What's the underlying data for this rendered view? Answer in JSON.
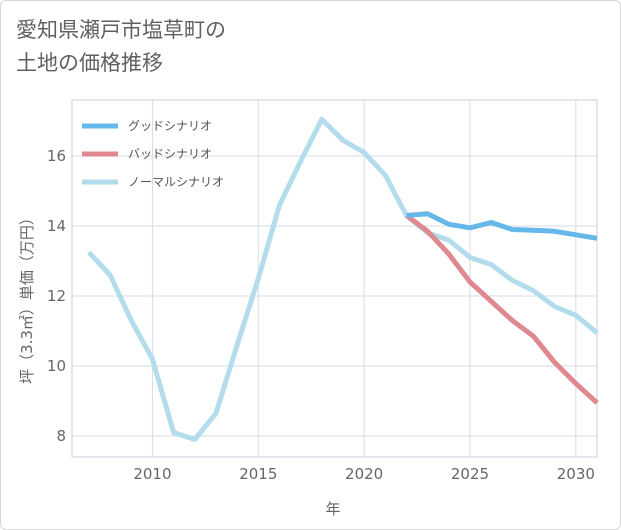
{
  "header": {
    "title_line1": "愛知県瀬戸市塩草町の",
    "title_line2": "土地の価格推移"
  },
  "chart_data": {
    "type": "line",
    "xlabel": "年",
    "ylabel": "坪（3.3㎡）単価（万円）",
    "xlim": [
      2006.2,
      2031
    ],
    "ylim": [
      7.4,
      17.6
    ],
    "xticks": [
      2010,
      2015,
      2020,
      2025,
      2030
    ],
    "yticks": [
      8,
      10,
      12,
      14,
      16
    ],
    "grid": true,
    "legend_position": "top-left",
    "series": [
      {
        "name": "グッドシナリオ",
        "color": "#66b8ea",
        "x": [
          2022,
          2023,
          2024,
          2025,
          2026,
          2027,
          2028,
          2029,
          2030,
          2031
        ],
        "y": [
          14.3,
          14.35,
          14.05,
          13.95,
          14.1,
          13.9,
          13.88,
          13.85,
          13.75,
          13.65
        ]
      },
      {
        "name": "バッドシナリオ",
        "color": "#e0888f",
        "x": [
          2022,
          2023,
          2024,
          2025,
          2026,
          2027,
          2028,
          2029,
          2030,
          2031
        ],
        "y": [
          14.3,
          13.85,
          13.2,
          12.4,
          11.85,
          11.3,
          10.85,
          10.1,
          9.5,
          8.95
        ]
      },
      {
        "name": "ノーマルシナリオ",
        "color": "#b3dced",
        "x": [
          2007,
          2008,
          2009,
          2010,
          2011,
          2012,
          2013,
          2014,
          2015,
          2016,
          2017,
          2018,
          2019,
          2020,
          2021,
          2022,
          2023,
          2024,
          2025,
          2026,
          2027,
          2028,
          2029,
          2030,
          2031
        ],
        "y": [
          13.25,
          12.6,
          11.3,
          10.2,
          8.1,
          7.9,
          8.65,
          10.6,
          12.5,
          14.6,
          15.85,
          17.05,
          16.45,
          16.1,
          15.45,
          14.3,
          13.8,
          13.6,
          13.1,
          12.9,
          12.45,
          12.15,
          11.7,
          11.45,
          10.95
        ]
      }
    ]
  }
}
